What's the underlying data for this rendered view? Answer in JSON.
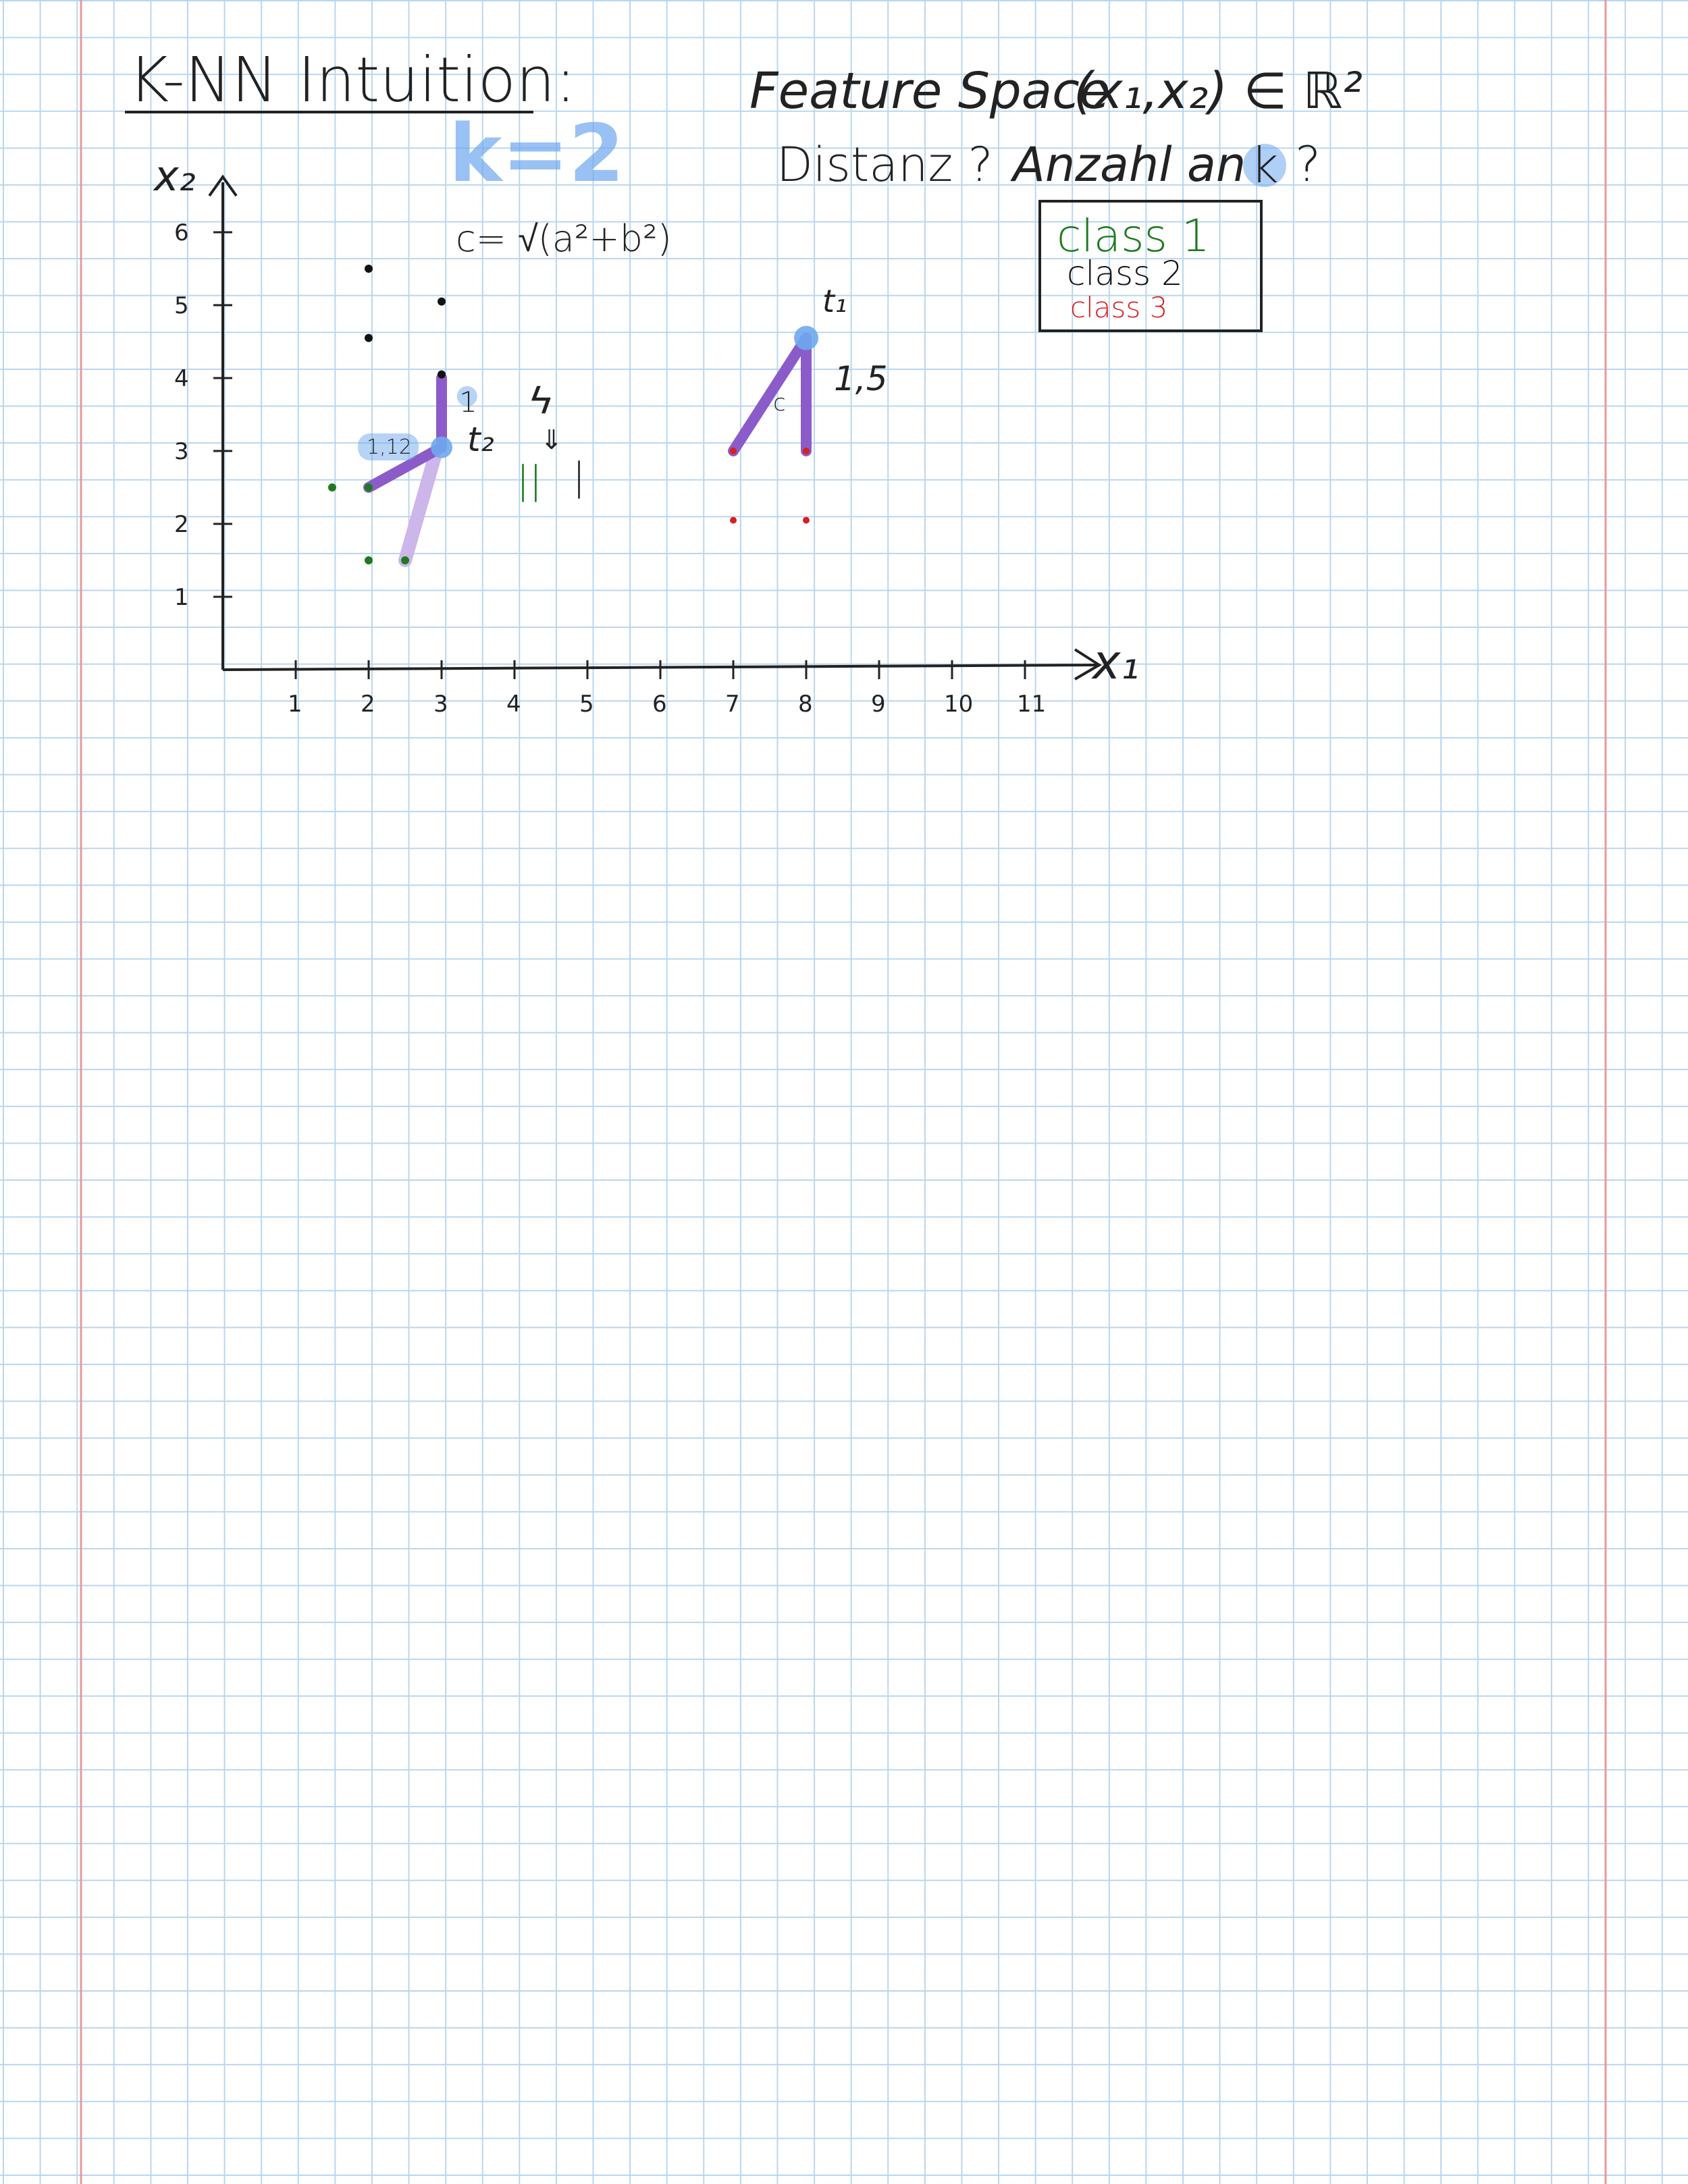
{
  "title": "K-NN Intuition:",
  "feature_space": {
    "label": "Feature Space",
    "tuple": "(x₁,x₂) ∈ ℝ²"
  },
  "questions": {
    "distance": "Distanz ?",
    "count": "Anzahl an",
    "k_symbol": "k",
    "count_qmark": "?"
  },
  "k_value": "k=2",
  "formula": "c= √(a²+b²)",
  "legend": {
    "items": [
      {
        "label": "class 1",
        "color": "#1f7a1f"
      },
      {
        "label": "class 2",
        "color": "#111111"
      },
      {
        "label": "class 3",
        "color": "#d62020"
      }
    ]
  },
  "axes": {
    "x_label": "x₁",
    "y_label": "x₂",
    "x_ticks": [
      "1",
      "2",
      "3",
      "4",
      "5",
      "6",
      "7",
      "8",
      "9",
      "10",
      "11"
    ],
    "y_ticks": [
      "1",
      "2",
      "3",
      "4",
      "5",
      "6"
    ]
  },
  "annotations": {
    "t1": "t₁",
    "t2": "t₂",
    "dist_t1": "1,5",
    "dist_c": "c",
    "dist_t2_h": "1,12",
    "dist_t2_v": "1",
    "vote_symbol": "ϟ",
    "vote_arrow": "⇓",
    "vote_tally_green": "||",
    "vote_tally_black": "|"
  },
  "colors": {
    "class1": "#1f7a1f",
    "class2": "#111111",
    "class3": "#d62020",
    "highlight": "#6fa8ee",
    "neighbor_line": "#8b5cc9",
    "neighbor_line_faint": "#cdb6ea",
    "ink": "#222222"
  }
}
